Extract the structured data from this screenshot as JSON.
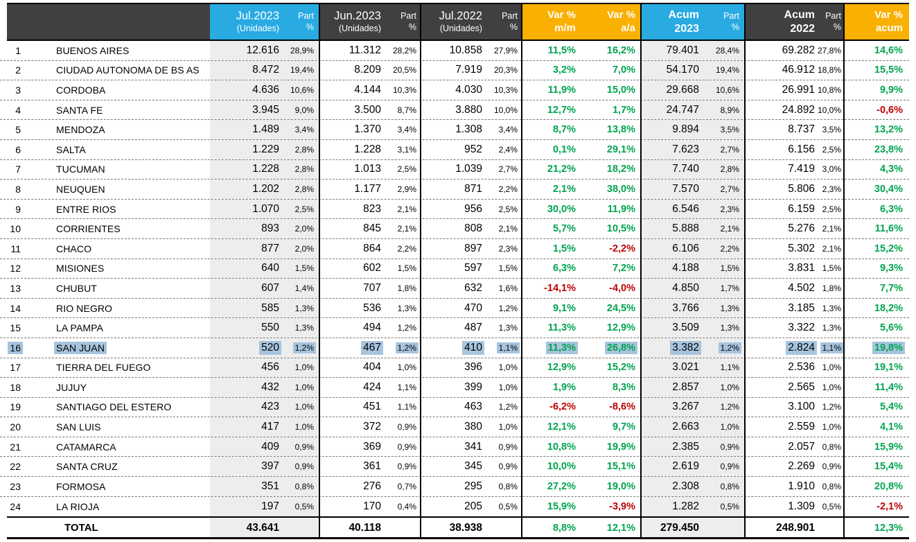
{
  "header": {
    "jul23": {
      "line1": "Jul.2023",
      "line2": "(Unidades)"
    },
    "jul23_part": {
      "line1": "Part",
      "line2": "%"
    },
    "jun23": {
      "line1": "Jun.2023",
      "line2": "(Unidades)"
    },
    "jun23_part": {
      "line1": "Part",
      "line2": "%"
    },
    "jul22": {
      "line1": "Jul.2022",
      "line2": "(Unidades)"
    },
    "jul22_part": {
      "line1": "Part",
      "line2": "%"
    },
    "var_mm": {
      "line1": "Var %",
      "line2": "m/m"
    },
    "var_aa": {
      "line1": "Var %",
      "line2": "a/a"
    },
    "acum23": {
      "line1": "Acum",
      "line2": "2023"
    },
    "acum23_part": {
      "line1": "Part",
      "line2": "%"
    },
    "acum22": {
      "line1": "Acum",
      "line2": "2022"
    },
    "acum22_part": {
      "line1": "Part",
      "line2": "%"
    },
    "var_acum": {
      "line1": "Var %",
      "line2": "acum"
    }
  },
  "colors": {
    "header_dark": "#404040",
    "header_cyan": "#29ABE2",
    "header_amber": "#F9B000",
    "column_shade": "#EDEDED",
    "positive": "#00A44F",
    "negative": "#C00000",
    "selection_highlight": "#A7C4DE"
  },
  "highlighted_row": 16,
  "rows": [
    {
      "num": 1,
      "name": "BUENOS AIRES",
      "jul23": "12.616",
      "jul23_part": "28,9%",
      "jun23": "11.312",
      "jun23_part": "28,2%",
      "jul22": "10.858",
      "jul22_part": "27,9%",
      "var_mm": "11,5%",
      "var_aa": "16,2%",
      "acum23": "79.401",
      "acum23_part": "28,4%",
      "acum22": "69.282",
      "acum22_part": "27,8%",
      "var_acum": "14,6%"
    },
    {
      "num": 2,
      "name": "CIUDAD AUTONOMA DE BS AS",
      "jul23": "8.472",
      "jul23_part": "19,4%",
      "jun23": "8.209",
      "jun23_part": "20,5%",
      "jul22": "7.919",
      "jul22_part": "20,3%",
      "var_mm": "3,2%",
      "var_aa": "7,0%",
      "acum23": "54.170",
      "acum23_part": "19,4%",
      "acum22": "46.912",
      "acum22_part": "18,8%",
      "var_acum": "15,5%"
    },
    {
      "num": 3,
      "name": "CORDOBA",
      "jul23": "4.636",
      "jul23_part": "10,6%",
      "jun23": "4.144",
      "jun23_part": "10,3%",
      "jul22": "4.030",
      "jul22_part": "10,3%",
      "var_mm": "11,9%",
      "var_aa": "15,0%",
      "acum23": "29.668",
      "acum23_part": "10,6%",
      "acum22": "26.991",
      "acum22_part": "10,8%",
      "var_acum": "9,9%"
    },
    {
      "num": 4,
      "name": "SANTA FE",
      "jul23": "3.945",
      "jul23_part": "9,0%",
      "jun23": "3.500",
      "jun23_part": "8,7%",
      "jul22": "3.880",
      "jul22_part": "10,0%",
      "var_mm": "12,7%",
      "var_aa": "1,7%",
      "acum23": "24.747",
      "acum23_part": "8,9%",
      "acum22": "24.892",
      "acum22_part": "10,0%",
      "var_acum": "-0,6%"
    },
    {
      "num": 5,
      "name": "MENDOZA",
      "jul23": "1.489",
      "jul23_part": "3,4%",
      "jun23": "1.370",
      "jun23_part": "3,4%",
      "jul22": "1.308",
      "jul22_part": "3,4%",
      "var_mm": "8,7%",
      "var_aa": "13,8%",
      "acum23": "9.894",
      "acum23_part": "3,5%",
      "acum22": "8.737",
      "acum22_part": "3,5%",
      "var_acum": "13,2%"
    },
    {
      "num": 6,
      "name": "SALTA",
      "jul23": "1.229",
      "jul23_part": "2,8%",
      "jun23": "1.228",
      "jun23_part": "3,1%",
      "jul22": "952",
      "jul22_part": "2,4%",
      "var_mm": "0,1%",
      "var_aa": "29,1%",
      "acum23": "7.623",
      "acum23_part": "2,7%",
      "acum22": "6.156",
      "acum22_part": "2,5%",
      "var_acum": "23,8%"
    },
    {
      "num": 7,
      "name": "TUCUMAN",
      "jul23": "1.228",
      "jul23_part": "2,8%",
      "jun23": "1.013",
      "jun23_part": "2,5%",
      "jul22": "1.039",
      "jul22_part": "2,7%",
      "var_mm": "21,2%",
      "var_aa": "18,2%",
      "acum23": "7.740",
      "acum23_part": "2,8%",
      "acum22": "7.419",
      "acum22_part": "3,0%",
      "var_acum": "4,3%"
    },
    {
      "num": 8,
      "name": "NEUQUEN",
      "jul23": "1.202",
      "jul23_part": "2,8%",
      "jun23": "1.177",
      "jun23_part": "2,9%",
      "jul22": "871",
      "jul22_part": "2,2%",
      "var_mm": "2,1%",
      "var_aa": "38,0%",
      "acum23": "7.570",
      "acum23_part": "2,7%",
      "acum22": "5.806",
      "acum22_part": "2,3%",
      "var_acum": "30,4%"
    },
    {
      "num": 9,
      "name": "ENTRE RIOS",
      "jul23": "1.070",
      "jul23_part": "2,5%",
      "jun23": "823",
      "jun23_part": "2,1%",
      "jul22": "956",
      "jul22_part": "2,5%",
      "var_mm": "30,0%",
      "var_aa": "11,9%",
      "acum23": "6.546",
      "acum23_part": "2,3%",
      "acum22": "6.159",
      "acum22_part": "2,5%",
      "var_acum": "6,3%"
    },
    {
      "num": 10,
      "name": "CORRIENTES",
      "jul23": "893",
      "jul23_part": "2,0%",
      "jun23": "845",
      "jun23_part": "2,1%",
      "jul22": "808",
      "jul22_part": "2,1%",
      "var_mm": "5,7%",
      "var_aa": "10,5%",
      "acum23": "5.888",
      "acum23_part": "2,1%",
      "acum22": "5.276",
      "acum22_part": "2,1%",
      "var_acum": "11,6%"
    },
    {
      "num": 11,
      "name": "CHACO",
      "jul23": "877",
      "jul23_part": "2,0%",
      "jun23": "864",
      "jun23_part": "2,2%",
      "jul22": "897",
      "jul22_part": "2,3%",
      "var_mm": "1,5%",
      "var_aa": "-2,2%",
      "acum23": "6.106",
      "acum23_part": "2,2%",
      "acum22": "5.302",
      "acum22_part": "2,1%",
      "var_acum": "15,2%"
    },
    {
      "num": 12,
      "name": "MISIONES",
      "jul23": "640",
      "jul23_part": "1,5%",
      "jun23": "602",
      "jun23_part": "1,5%",
      "jul22": "597",
      "jul22_part": "1,5%",
      "var_mm": "6,3%",
      "var_aa": "7,2%",
      "acum23": "4.188",
      "acum23_part": "1,5%",
      "acum22": "3.831",
      "acum22_part": "1,5%",
      "var_acum": "9,3%"
    },
    {
      "num": 13,
      "name": "CHUBUT",
      "jul23": "607",
      "jul23_part": "1,4%",
      "jun23": "707",
      "jun23_part": "1,8%",
      "jul22": "632",
      "jul22_part": "1,6%",
      "var_mm": "-14,1%",
      "var_aa": "-4,0%",
      "acum23": "4.850",
      "acum23_part": "1,7%",
      "acum22": "4.502",
      "acum22_part": "1,8%",
      "var_acum": "7,7%"
    },
    {
      "num": 14,
      "name": "RIO NEGRO",
      "jul23": "585",
      "jul23_part": "1,3%",
      "jun23": "536",
      "jun23_part": "1,3%",
      "jul22": "470",
      "jul22_part": "1,2%",
      "var_mm": "9,1%",
      "var_aa": "24,5%",
      "acum23": "3.766",
      "acum23_part": "1,3%",
      "acum22": "3.185",
      "acum22_part": "1,3%",
      "var_acum": "18,2%"
    },
    {
      "num": 15,
      "name": "LA PAMPA",
      "jul23": "550",
      "jul23_part": "1,3%",
      "jun23": "494",
      "jun23_part": "1,2%",
      "jul22": "487",
      "jul22_part": "1,3%",
      "var_mm": "11,3%",
      "var_aa": "12,9%",
      "acum23": "3.509",
      "acum23_part": "1,3%",
      "acum22": "3.322",
      "acum22_part": "1,3%",
      "var_acum": "5,6%"
    },
    {
      "num": 16,
      "name": "SAN JUAN",
      "jul23": "520",
      "jul23_part": "1,2%",
      "jun23": "467",
      "jun23_part": "1,2%",
      "jul22": "410",
      "jul22_part": "1,1%",
      "var_mm": "11,3%",
      "var_aa": "26,8%",
      "acum23": "3.382",
      "acum23_part": "1,2%",
      "acum22": "2.824",
      "acum22_part": "1,1%",
      "var_acum": "19,8%"
    },
    {
      "num": 17,
      "name": "TIERRA DEL FUEGO",
      "jul23": "456",
      "jul23_part": "1,0%",
      "jun23": "404",
      "jun23_part": "1,0%",
      "jul22": "396",
      "jul22_part": "1,0%",
      "var_mm": "12,9%",
      "var_aa": "15,2%",
      "acum23": "3.021",
      "acum23_part": "1,1%",
      "acum22": "2.536",
      "acum22_part": "1,0%",
      "var_acum": "19,1%"
    },
    {
      "num": 18,
      "name": "JUJUY",
      "jul23": "432",
      "jul23_part": "1,0%",
      "jun23": "424",
      "jun23_part": "1,1%",
      "jul22": "399",
      "jul22_part": "1,0%",
      "var_mm": "1,9%",
      "var_aa": "8,3%",
      "acum23": "2.857",
      "acum23_part": "1,0%",
      "acum22": "2.565",
      "acum22_part": "1,0%",
      "var_acum": "11,4%"
    },
    {
      "num": 19,
      "name": "SANTIAGO DEL ESTERO",
      "jul23": "423",
      "jul23_part": "1,0%",
      "jun23": "451",
      "jun23_part": "1,1%",
      "jul22": "463",
      "jul22_part": "1,2%",
      "var_mm": "-6,2%",
      "var_aa": "-8,6%",
      "acum23": "3.267",
      "acum23_part": "1,2%",
      "acum22": "3.100",
      "acum22_part": "1,2%",
      "var_acum": "5,4%"
    },
    {
      "num": 20,
      "name": "SAN LUIS",
      "jul23": "417",
      "jul23_part": "1,0%",
      "jun23": "372",
      "jun23_part": "0,9%",
      "jul22": "380",
      "jul22_part": "1,0%",
      "var_mm": "12,1%",
      "var_aa": "9,7%",
      "acum23": "2.663",
      "acum23_part": "1,0%",
      "acum22": "2.559",
      "acum22_part": "1,0%",
      "var_acum": "4,1%"
    },
    {
      "num": 21,
      "name": "CATAMARCA",
      "jul23": "409",
      "jul23_part": "0,9%",
      "jun23": "369",
      "jun23_part": "0,9%",
      "jul22": "341",
      "jul22_part": "0,9%",
      "var_mm": "10,8%",
      "var_aa": "19,9%",
      "acum23": "2.385",
      "acum23_part": "0,9%",
      "acum22": "2.057",
      "acum22_part": "0,8%",
      "var_acum": "15,9%"
    },
    {
      "num": 22,
      "name": "SANTA CRUZ",
      "jul23": "397",
      "jul23_part": "0,9%",
      "jun23": "361",
      "jun23_part": "0,9%",
      "jul22": "345",
      "jul22_part": "0,9%",
      "var_mm": "10,0%",
      "var_aa": "15,1%",
      "acum23": "2.619",
      "acum23_part": "0,9%",
      "acum22": "2.269",
      "acum22_part": "0,9%",
      "var_acum": "15,4%"
    },
    {
      "num": 23,
      "name": "FORMOSA",
      "jul23": "351",
      "jul23_part": "0,8%",
      "jun23": "276",
      "jun23_part": "0,7%",
      "jul22": "295",
      "jul22_part": "0,8%",
      "var_mm": "27,2%",
      "var_aa": "19,0%",
      "acum23": "2.308",
      "acum23_part": "0,8%",
      "acum22": "1.910",
      "acum22_part": "0,8%",
      "var_acum": "20,8%"
    },
    {
      "num": 24,
      "name": "LA RIOJA",
      "jul23": "197",
      "jul23_part": "0,5%",
      "jun23": "170",
      "jun23_part": "0,4%",
      "jul22": "205",
      "jul22_part": "0,5%",
      "var_mm": "15,9%",
      "var_aa": "-3,9%",
      "acum23": "1.282",
      "acum23_part": "0,5%",
      "acum22": "1.309",
      "acum22_part": "0,5%",
      "var_acum": "-2,1%"
    }
  ],
  "total": {
    "label": "TOTAL",
    "jul23": "43.641",
    "jun23": "40.118",
    "jul22": "38.938",
    "var_mm": "8,8%",
    "var_aa": "12,1%",
    "acum23": "279.450",
    "acum22": "248.901",
    "var_acum": "12,3%"
  }
}
